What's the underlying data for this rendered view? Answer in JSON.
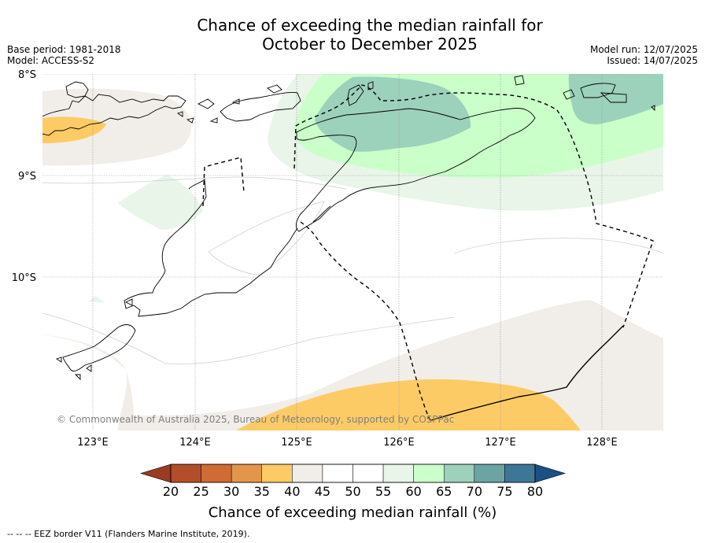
{
  "title": {
    "line1": "Chance of exceeding the median rainfall for",
    "line2": "October to December 2025"
  },
  "meta": {
    "base_period": "Base period: 1981-2018",
    "model": "Model: ACCESS-S2",
    "model_run": "Model run: 12/07/2025",
    "issued": "Issued: 14/07/2025"
  },
  "map": {
    "lat_labels": [
      "8°S",
      "9°S",
      "10°S"
    ],
    "lon_labels": [
      "123°E",
      "124°E",
      "125°E",
      "126°E",
      "127°E",
      "128°E"
    ],
    "copyright": "© Commonwealth of Australia 2025, Bureau of Meteorology, supported by COSPPac",
    "colors": {
      "c35_40": "#fdcb65",
      "c40_45": "#f1ede8",
      "c55_60": "#e8f5e8",
      "c60_65": "#caffca",
      "c65_70": "#9cd1bb",
      "land_outline": "#000000",
      "eez_line": "#000000",
      "grid": "#999999"
    }
  },
  "colorbar": {
    "tick_labels": [
      "20",
      "25",
      "30",
      "35",
      "40",
      "45",
      "50",
      "55",
      "60",
      "65",
      "70",
      "75",
      "80"
    ],
    "colors": [
      "#b24f2a",
      "#cf6b34",
      "#e3964a",
      "#fdcb65",
      "#f1ede8",
      "#ffffff",
      "#ffffff",
      "#e8f5e8",
      "#caffca",
      "#9cd1bb",
      "#6aa5a4",
      "#3e7698"
    ],
    "under_color": "#9a3b23",
    "over_color": "#1b4f86",
    "title": "Chance of exceeding median rainfall (%)"
  },
  "footnote": "--  --  -- EEZ border V11 (Flanders Marine Institute, 2019)."
}
